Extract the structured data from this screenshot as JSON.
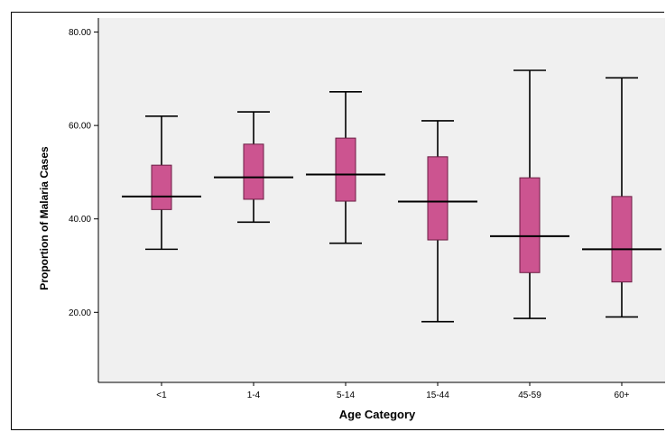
{
  "chart_data": {
    "type": "boxplot",
    "xlabel": "Age Category",
    "ylabel": "Proportion of Malaria Cases",
    "ylim": [
      5,
      83
    ],
    "yticks": [
      "20.00",
      "40.00",
      "60.00",
      "80.00"
    ],
    "ytick_values": [
      20,
      40,
      60,
      80
    ],
    "grid": false,
    "colors": {
      "box_fill": "#cc5490",
      "box_stroke": "#6b1d43",
      "plot_bg": "#f0f0f0",
      "whisker": "#000000"
    },
    "categories": [
      "<1",
      "1-4",
      "5-14",
      "15-44",
      "45-59",
      "60+"
    ],
    "boxes": [
      {
        "min": 33.5,
        "q1": 42.0,
        "median": 44.8,
        "q3": 51.5,
        "max": 62.0
      },
      {
        "min": 39.3,
        "q1": 44.2,
        "median": 48.9,
        "q3": 56.0,
        "max": 62.9
      },
      {
        "min": 34.8,
        "q1": 43.8,
        "median": 49.5,
        "q3": 57.3,
        "max": 67.2
      },
      {
        "min": 18.0,
        "q1": 35.5,
        "median": 43.7,
        "q3": 53.3,
        "max": 61.0
      },
      {
        "min": 18.7,
        "q1": 28.5,
        "median": 36.3,
        "q3": 48.8,
        "max": 71.8
      },
      {
        "min": 19.0,
        "q1": 26.5,
        "median": 33.5,
        "q3": 44.8,
        "max": 70.2
      }
    ]
  }
}
